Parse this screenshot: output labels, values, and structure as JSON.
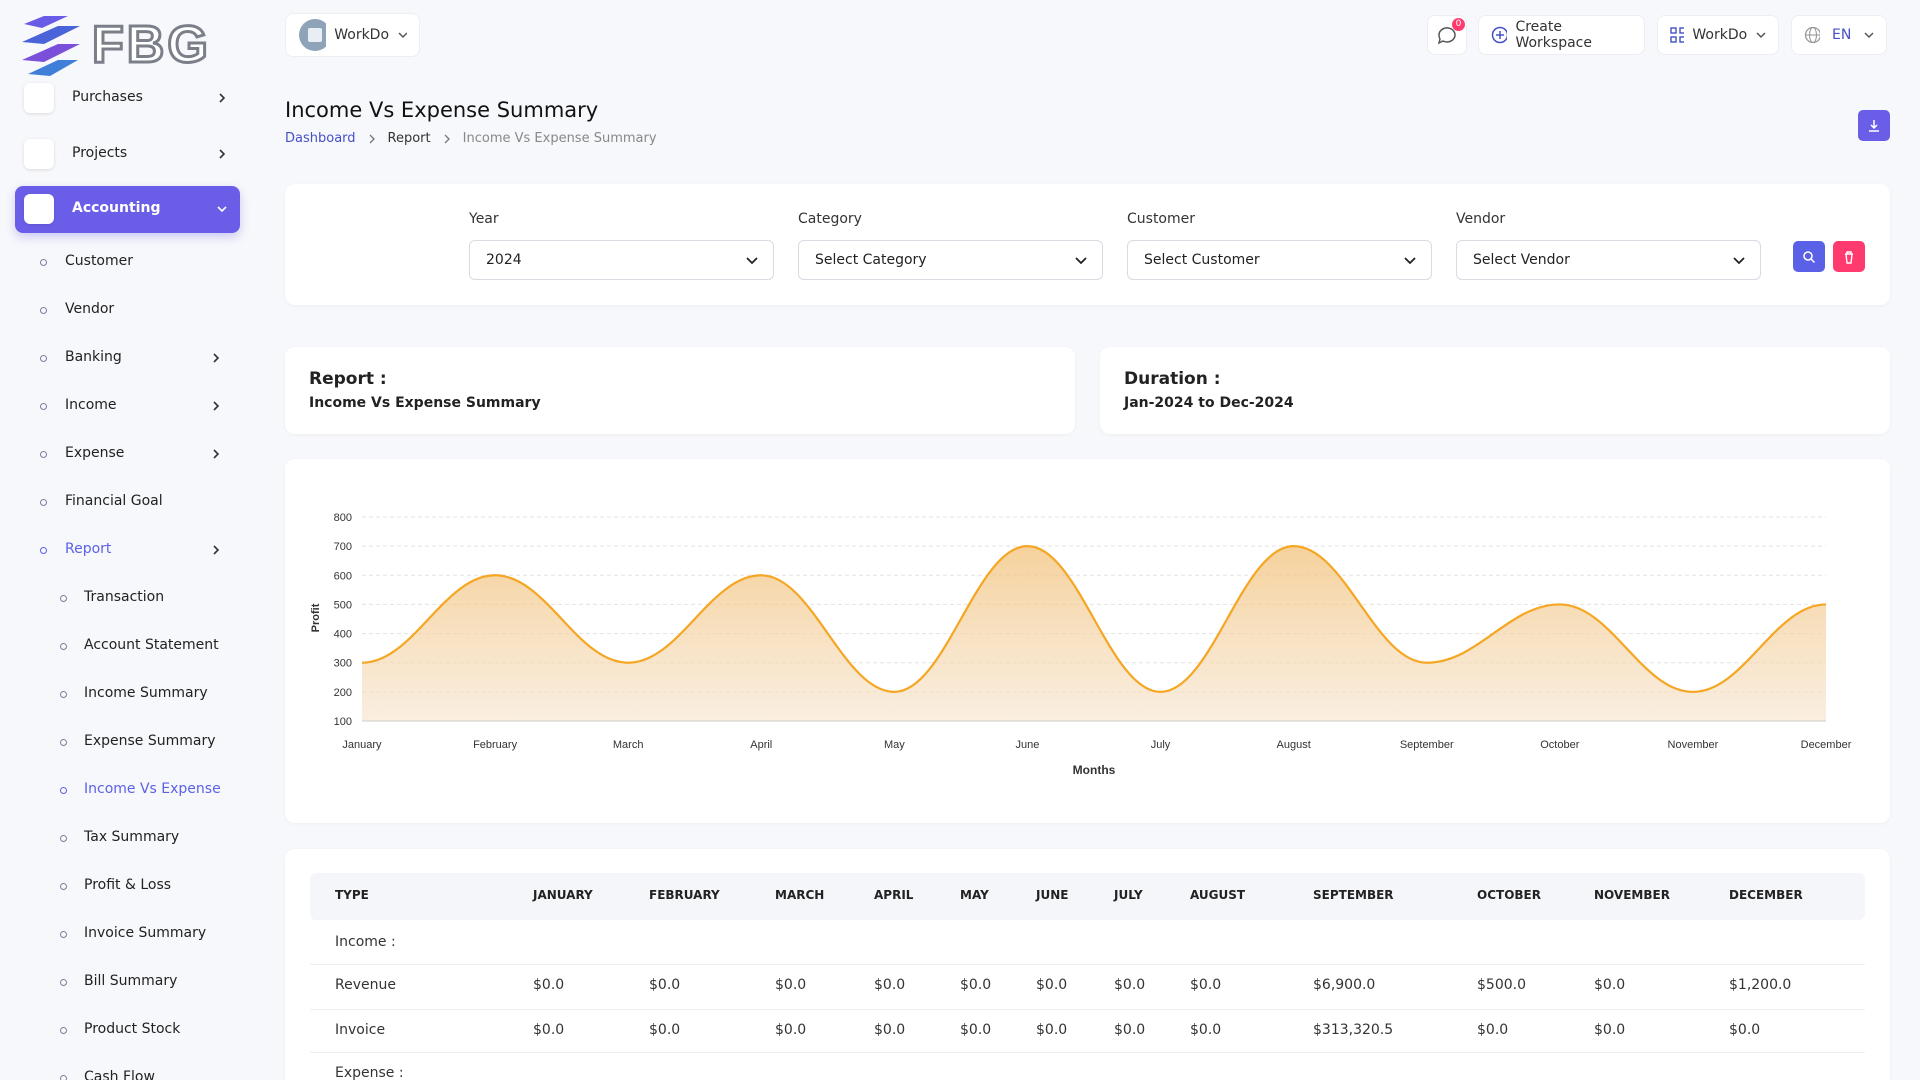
{
  "logo": "FBG",
  "sidebar": {
    "main": [
      "Purchases",
      "Projects",
      "Accounting"
    ],
    "accounting": [
      "Customer",
      "Vendor",
      "Banking",
      "Income",
      "Expense",
      "Financial Goal",
      "Report"
    ],
    "report": [
      "Transaction",
      "Account Statement",
      "Income Summary",
      "Expense Summary",
      "Income Vs Expense",
      "Tax Summary",
      "Profit & Loss",
      "Invoice Summary",
      "Bill Summary",
      "Product Stock",
      "Cash Flow"
    ]
  },
  "header": {
    "workspace": "WorkDo",
    "notifications": "0",
    "create": "Create Workspace",
    "account": "WorkDo",
    "language": "EN"
  },
  "page": {
    "title": "Income Vs Expense Summary",
    "breadcrumbs": [
      "Dashboard",
      "Report",
      "Income Vs Expense Summary"
    ]
  },
  "filters": [
    {
      "label": "Year",
      "value": "2024"
    },
    {
      "label": "Category",
      "value": "Select Category"
    },
    {
      "label": "Customer",
      "value": "Select Customer"
    },
    {
      "label": "Vendor",
      "value": "Select Vendor"
    }
  ],
  "info": [
    {
      "label": "Report :",
      "value": "Income Vs Expense Summary"
    },
    {
      "label": "Duration :",
      "value": "Jan-2024 to Dec-2024"
    }
  ],
  "chart_data": {
    "type": "area",
    "x_label": "Months",
    "y_label": "Profit",
    "categories": [
      "January",
      "February",
      "March",
      "April",
      "May",
      "June",
      "July",
      "August",
      "September",
      "October",
      "November",
      "December"
    ],
    "values": [
      300,
      600,
      300,
      600,
      200,
      700,
      200,
      700,
      300,
      500,
      200,
      500
    ],
    "color": "#f5a623",
    "ylim": [
      100,
      800
    ],
    "yticks": [
      100,
      200,
      300,
      400,
      500,
      600,
      700,
      800
    ],
    "grid": true
  },
  "table": {
    "columns": [
      "TYPE",
      "JANUARY",
      "FEBRUARY",
      "MARCH",
      "APRIL",
      "MAY",
      "JUNE",
      "JULY",
      "AUGUST",
      "SEPTEMBER",
      "OCTOBER",
      "NOVEMBER",
      "DECEMBER"
    ],
    "rows": [
      [
        "Income :"
      ],
      [
        "Revenue",
        "$0.0",
        "$0.0",
        "$0.0",
        "$0.0",
        "$0.0",
        "$0.0",
        "$0.0",
        "$0.0",
        "$6,900.0",
        "$500.0",
        "$0.0",
        "$1,200.0"
      ],
      [
        "Invoice",
        "$0.0",
        "$0.0",
        "$0.0",
        "$0.0",
        "$0.0",
        "$0.0",
        "$0.0",
        "$0.0",
        "$313,320.5",
        "$0.0",
        "$0.0",
        "$0.0"
      ],
      [
        "Expense :"
      ]
    ]
  }
}
